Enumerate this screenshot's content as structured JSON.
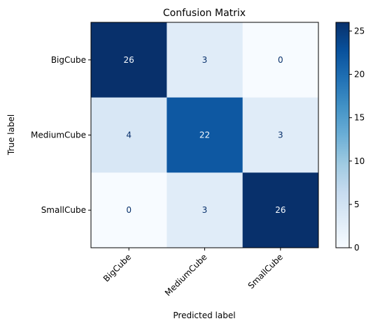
{
  "chart_data": {
    "type": "heatmap",
    "title": "Confusion Matrix",
    "xlabel": "Predicted label",
    "ylabel": "True label",
    "x_categories": [
      "BigCube",
      "MediumCube",
      "SmallCube"
    ],
    "y_categories": [
      "BigCube",
      "MediumCube",
      "SmallCube"
    ],
    "values": [
      [
        26,
        3,
        0
      ],
      [
        4,
        22,
        3
      ],
      [
        0,
        3,
        26
      ]
    ],
    "colormap": "Blues",
    "color_range": [
      0,
      26
    ],
    "colorbar_ticks": [
      0,
      5,
      10,
      15,
      20,
      25
    ],
    "colorbar_tick_labels": [
      "0",
      "5",
      "10",
      "15",
      "20",
      "25"
    ],
    "x_tick_rotation_deg": 45,
    "grid": false,
    "colors": {
      "low": "#f7fbff",
      "high": "#08306b",
      "text_dark": "#08306b",
      "text_light": "#f7fbff"
    }
  }
}
